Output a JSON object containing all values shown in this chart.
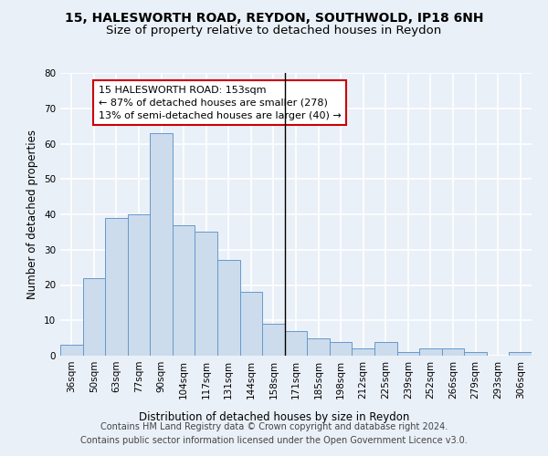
{
  "title1": "15, HALESWORTH ROAD, REYDON, SOUTHWOLD, IP18 6NH",
  "title2": "Size of property relative to detached houses in Reydon",
  "xlabel": "Distribution of detached houses by size in Reydon",
  "ylabel": "Number of detached properties",
  "categories": [
    "36sqm",
    "50sqm",
    "63sqm",
    "77sqm",
    "90sqm",
    "104sqm",
    "117sqm",
    "131sqm",
    "144sqm",
    "158sqm",
    "171sqm",
    "185sqm",
    "198sqm",
    "212sqm",
    "225sqm",
    "239sqm",
    "252sqm",
    "266sqm",
    "279sqm",
    "293sqm",
    "306sqm"
  ],
  "values": [
    3,
    22,
    39,
    40,
    63,
    37,
    35,
    27,
    18,
    9,
    7,
    5,
    4,
    2,
    4,
    1,
    2,
    2,
    1,
    0,
    1
  ],
  "bar_color": "#ccdcec",
  "bar_edge_color": "#6699cc",
  "property_line_x": 9.5,
  "annotation_text": "15 HALESWORTH ROAD: 153sqm\n← 87% of detached houses are smaller (278)\n13% of semi-detached houses are larger (40) →",
  "annotation_box_color": "#ffffff",
  "annotation_box_edge": "#cc0000",
  "ylim": [
    0,
    80
  ],
  "yticks": [
    0,
    10,
    20,
    30,
    40,
    50,
    60,
    70,
    80
  ],
  "footer1": "Contains HM Land Registry data © Crown copyright and database right 2024.",
  "footer2": "Contains public sector information licensed under the Open Government Licence v3.0.",
  "background_color": "#eaf0f8",
  "grid_color": "#ffffff",
  "title_fontsize": 10,
  "subtitle_fontsize": 9.5,
  "axis_label_fontsize": 8.5,
  "tick_fontsize": 7.5,
  "annotation_fontsize": 8,
  "footer_fontsize": 7
}
